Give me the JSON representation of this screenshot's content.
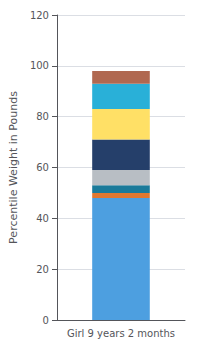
{
  "chart_data": {
    "type": "bar",
    "stacked": true,
    "categories": [
      "Girl 9 years 2 months"
    ],
    "series": [
      {
        "color": "#4D9FE0",
        "values": [
          48
        ]
      },
      {
        "color": "#E07830",
        "values": [
          2
        ]
      },
      {
        "color": "#1A7A9A",
        "values": [
          3
        ]
      },
      {
        "color": "#B8BEC4",
        "values": [
          6
        ]
      },
      {
        "color": "#253F6A",
        "values": [
          12
        ]
      },
      {
        "color": "#FFE066",
        "values": [
          12
        ]
      },
      {
        "color": "#29B0D8",
        "values": [
          10
        ]
      },
      {
        "color": "#B06850",
        "values": [
          5
        ]
      }
    ],
    "ylabel": "Percentile Weight in Pounds",
    "ylim": [
      0,
      120
    ],
    "yticks": [
      0,
      20,
      40,
      60,
      80,
      100,
      120
    ],
    "grid": true
  }
}
